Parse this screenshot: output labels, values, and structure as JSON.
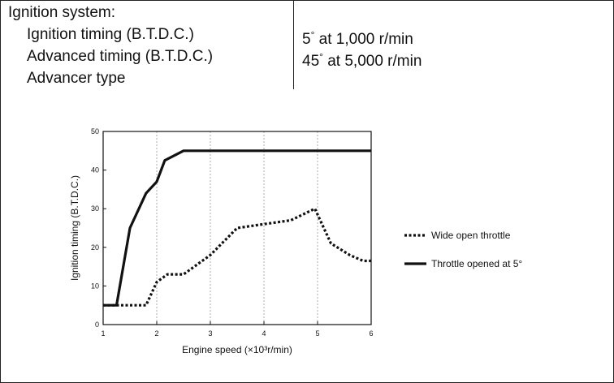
{
  "specs": {
    "heading": "Ignition system:",
    "rows": [
      {
        "label": "Ignition timing (B.T.D.C.)",
        "value_num": "5",
        "value_deg": "°",
        "value_rest": " at 1,000 r/min"
      },
      {
        "label": "Advanced timing (B.T.D.C.)",
        "value_num": "45",
        "value_deg": "°",
        "value_rest": " at 5,000 r/min"
      },
      {
        "label": "Advancer type",
        "value_num": "",
        "value_deg": "",
        "value_rest": ""
      }
    ]
  },
  "chart_data": {
    "type": "line",
    "xlabel": "Engine speed (×10³r/min)",
    "ylabel": "Ignition timing (B.T.D.C.)",
    "xlim": [
      1,
      6
    ],
    "ylim": [
      0,
      50
    ],
    "x_ticks": [
      "1",
      "2",
      "3",
      "4",
      "5",
      "6"
    ],
    "y_ticks": [
      "0",
      "10",
      "20",
      "30",
      "40",
      "50"
    ],
    "grid": "vertical",
    "legend_position": "right",
    "series": [
      {
        "name": "Wide open throttle",
        "style": "dotted",
        "color": "#111111",
        "points": [
          [
            1.0,
            5
          ],
          [
            1.8,
            5
          ],
          [
            2.0,
            11
          ],
          [
            2.2,
            13
          ],
          [
            2.5,
            13
          ],
          [
            3.0,
            18
          ],
          [
            3.5,
            25
          ],
          [
            4.0,
            26
          ],
          [
            4.5,
            27
          ],
          [
            4.95,
            30
          ],
          [
            5.25,
            21
          ],
          [
            5.6,
            18
          ],
          [
            5.85,
            16.5
          ],
          [
            6.0,
            16.5
          ]
        ]
      },
      {
        "name": "Throttle opened at 5°",
        "style": "solid",
        "color": "#111111",
        "points": [
          [
            1.0,
            5
          ],
          [
            1.25,
            5
          ],
          [
            1.5,
            25
          ],
          [
            1.8,
            34
          ],
          [
            2.0,
            37
          ],
          [
            2.15,
            42.5
          ],
          [
            2.5,
            45
          ],
          [
            6.0,
            45
          ]
        ]
      }
    ]
  }
}
